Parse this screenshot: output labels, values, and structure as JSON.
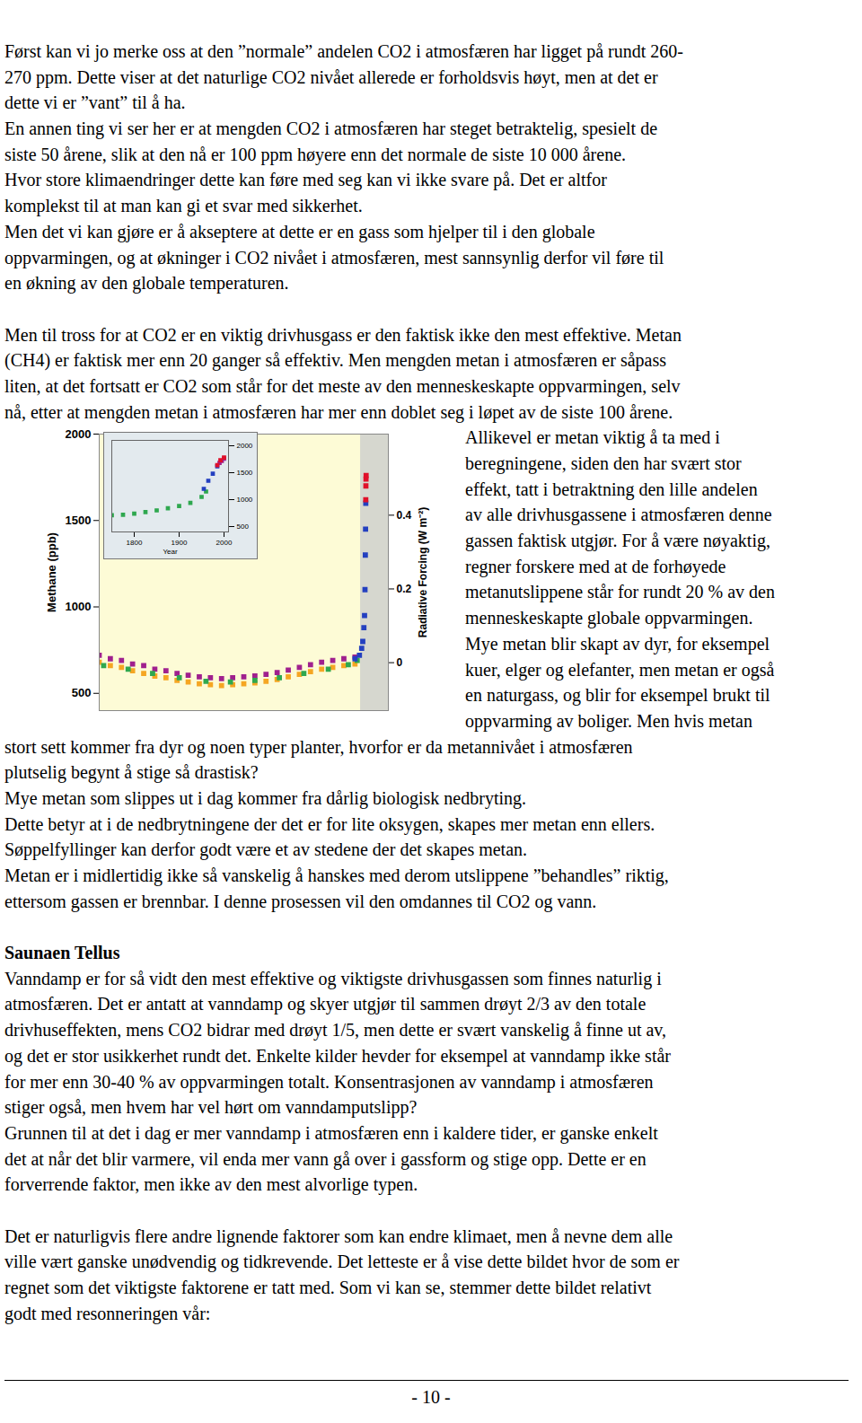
{
  "page": {
    "blocks": [
      {
        "lines": [
          "Først kan vi jo merke oss at den ”normale” andelen CO2 i atmosfæren har ligget på rundt 260-",
          "270 ppm. Dette viser at det naturlige CO2 nivået allerede er forholdsvis høyt, men at det er",
          "dette vi er ”vant” til å ha.",
          "En annen ting vi ser her er at mengden CO2 i atmosfæren har steget betraktelig, spesielt de",
          "siste 50 årene, slik at den nå er 100 ppm høyere enn det normale de siste 10 000 årene.",
          "Hvor store klimaendringer dette kan føre med seg kan vi ikke svare på. Det er altfor",
          "komplekst til at man kan gi et svar med sikkerhet.",
          "Men det vi kan gjøre er å akseptere at dette er en gass som hjelper til i den globale",
          "oppvarmingen, og at økninger i CO2 nivået i atmosfæren, mest sannsynlig derfor vil føre til",
          "en økning av den globale temperaturen."
        ]
      },
      {
        "lines": [
          "Men til tross for at CO2 er en viktig drivhusgass er den faktisk ikke den mest effektive. Metan",
          "(CH4) er faktisk mer enn 20 ganger så effektiv. Men mengden metan i atmosfæren er såpass",
          "liten, at det fortsatt er CO2 som står for det meste av den menneskeskapte oppvarmingen, selv",
          "nå, etter at mengden metan i atmosfæren har mer enn doblet seg i løpet av de siste 100 årene."
        ],
        "wrap_lines": [
          "Allikevel er metan viktig å ta med i",
          "beregningene, siden den har svært stor",
          "effekt, tatt i betraktning den lille andelen",
          "av alle drivhusgassene i atmosfæren denne",
          "gassen faktisk utgjør. For å være nøyaktig,",
          "regner forskere med at de forhøyede",
          "metanutslippene står for rundt 20 % av den",
          "menneskeskapte globale oppvarmingen.",
          "Mye metan blir skapt av dyr, for eksempel",
          "kuer, elger og elefanter, men metan er også",
          "en naturgass, og blir for eksempel brukt til",
          "oppvarming av boliger.  Men hvis metan"
        ],
        "lines_after": [
          "stort sett kommer fra dyr og noen typer planter, hvorfor er da metannivået i atmosfæren",
          "plutselig begynt å stige så drastisk?",
          "Mye metan som slippes ut i dag kommer fra dårlig biologisk nedbryting.",
          "Dette betyr at i de nedbrytningene der det er for lite oksygen, skapes mer metan enn ellers.",
          "Søppelfyllinger kan derfor godt være et av stedene der det skapes metan.",
          "Metan er i midlertidig ikke så vanskelig å hanskes med derom utslippene ”behandles” riktig,",
          "ettersom gassen er brennbar. I denne prosessen vil den omdannes til CO2 og vann."
        ]
      },
      {
        "heading": "Saunaen Tellus",
        "lines": [
          "Vanndamp er for så vidt den mest effektive og viktigste drivhusgassen som finnes naturlig i",
          "atmosfæren. Det er antatt at vanndamp og skyer utgjør til sammen drøyt 2/3 av den totale",
          "drivhuseffekten, mens CO2 bidrar med drøyt 1/5, men dette er svært vanskelig å finne ut av,",
          "og det er stor usikkerhet rundt det. Enkelte kilder hevder for eksempel at vanndamp ikke står",
          "for mer enn 30-40 % av oppvarmingen totalt. Konsentrasjonen av vanndamp i atmosfæren",
          "stiger også, men hvem har vel hørt om vanndamputslipp?",
          "Grunnen til at det i dag er mer vanndamp i atmosfæren enn i kaldere tider, er ganske enkelt",
          "det at når det blir varmere, vil enda mer vann gå over i gassform og stige opp. Dette er en",
          "forverrende faktor, men ikke av den mest alvorlige typen."
        ]
      },
      {
        "lines": [
          "Det er naturligvis flere andre lignende faktorer som kan endre klimaet, men å nevne dem alle",
          "ville vært ganske unødvendig og tidkrevende. Det letteste er å vise dette bildet hvor de som er",
          "regnet som det viktigste faktorene er tatt med. Som vi kan se, stemmer dette bildet relativt",
          "godt med resonneringen vår:"
        ]
      }
    ],
    "page_number": "- 10 -"
  },
  "chart_data": [
    {
      "type": "scatter",
      "marker": "square",
      "ylabel": "Methane (ppb)",
      "y2label": "Radiative Forcing (W m⁻²)",
      "xlim": [
        -10000,
        3000
      ],
      "tick_labels": "y",
      "ylim": [
        400,
        2000
      ],
      "yticks": [
        500,
        1000,
        1500,
        2000
      ],
      "y2lim": [
        -0.13,
        0.62
      ],
      "y2ticks": [
        0,
        0.2,
        0.4
      ],
      "series": [
        {
          "color": "#f5a623",
          "x": [
            -10000,
            -9500,
            -9000,
            -8500,
            -8000,
            -7500,
            -7000,
            -6500,
            -6000,
            -5500,
            -5000,
            -4500,
            -4000,
            -3500,
            -3000,
            -2500,
            -2000,
            -1500,
            -1000,
            -500,
            0,
            500,
            1000,
            1500
          ],
          "values": [
            680,
            660,
            650,
            630,
            615,
            600,
            590,
            575,
            565,
            555,
            550,
            545,
            550,
            555,
            560,
            570,
            580,
            595,
            610,
            625,
            640,
            650,
            660,
            670
          ]
        },
        {
          "color": "#a0208e",
          "x": [
            -10000,
            -9500,
            -9000,
            -8500,
            -8000,
            -7500,
            -7000,
            -6500,
            -6000,
            -5500,
            -5000,
            -4500,
            -4000,
            -3500,
            -3000,
            -2500,
            -2000,
            -1500,
            -1000,
            -500,
            0,
            500,
            1000,
            1500
          ],
          "values": [
            720,
            700,
            690,
            670,
            660,
            640,
            630,
            615,
            605,
            595,
            590,
            585,
            590,
            595,
            600,
            610,
            620,
            635,
            650,
            665,
            680,
            690,
            700,
            710
          ]
        },
        {
          "color": "#2fa84f",
          "x": [
            -9800,
            -8700,
            -7600,
            -6400,
            -5200,
            -4100,
            -3000,
            -1900,
            -800,
            300,
            1200,
            1600
          ],
          "values": [
            660,
            640,
            615,
            590,
            570,
            565,
            575,
            590,
            615,
            640,
            665,
            690
          ]
        },
        {
          "color": "#2440c0",
          "x": [
            1500,
            1700,
            1800,
            1850,
            1900,
            1930,
            1950,
            1965,
            1975,
            1985
          ],
          "values": [
            700,
            720,
            760,
            800,
            880,
            950,
            1100,
            1300,
            1450,
            1600
          ]
        },
        {
          "color": "#e0102a",
          "x": [
            1985,
            1990,
            1995,
            2000
          ],
          "values": [
            1620,
            1700,
            1740,
            1760
          ]
        }
      ]
    },
    {
      "type": "scatter",
      "marker": "square",
      "xlabel": "Year",
      "xlim": [
        1750,
        2010
      ],
      "xticks": [
        1800,
        1900,
        2000
      ],
      "ylim": [
        400,
        2100
      ],
      "yticks": [
        500,
        1000,
        1500,
        2000
      ],
      "series": [
        {
          "color": "#2fa84f",
          "x": [
            1750,
            1775,
            1800,
            1825,
            1850,
            1875,
            1900,
            1925,
            1950,
            1960
          ],
          "values": [
            710,
            720,
            740,
            770,
            800,
            840,
            880,
            940,
            1050,
            1150
          ]
        },
        {
          "color": "#2440c0",
          "x": [
            1955,
            1965,
            1975,
            1985
          ],
          "values": [
            1200,
            1350,
            1480,
            1620
          ]
        },
        {
          "color": "#a0208e",
          "x": [
            1990,
            1995,
            2000
          ],
          "values": [
            1680,
            1720,
            1760
          ]
        },
        {
          "color": "#e0102a",
          "x": [
            1985,
            1992,
            2000
          ],
          "values": [
            1640,
            1730,
            1780
          ]
        }
      ]
    }
  ]
}
